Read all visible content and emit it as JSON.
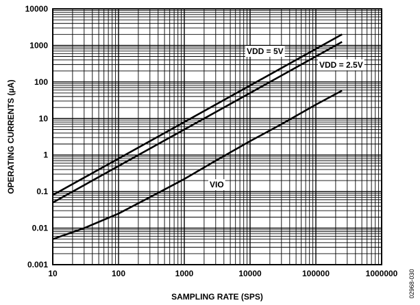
{
  "chart_data": {
    "type": "line",
    "title": "",
    "xlabel": "SAMPLING RATE (SPS)",
    "ylabel": "OPERATING CURRENTS (µA)",
    "xscale": "log",
    "yscale": "log",
    "xlim": [
      10,
      1000000
    ],
    "ylim": [
      0.001,
      10000
    ],
    "grid": true,
    "x_ticks": [
      "10",
      "100",
      "1000",
      "10000",
      "100000",
      "1000000"
    ],
    "y_ticks": [
      "0.001",
      "0.01",
      "0.1",
      "1",
      "10",
      "100",
      "1000",
      "10000"
    ],
    "series": [
      {
        "name": "VDD = 5V",
        "x": [
          10,
          250000
        ],
        "y": [
          0.08,
          2000
        ]
      },
      {
        "name": "VDD = 2.5V",
        "x": [
          10,
          250000
        ],
        "y": [
          0.05,
          1250
        ]
      },
      {
        "name": "VIO",
        "x": [
          10,
          30,
          100,
          300,
          1000,
          3000,
          10000,
          30000,
          100000,
          250000
        ],
        "y": [
          0.005,
          0.01,
          0.025,
          0.07,
          0.22,
          0.7,
          2.4,
          7,
          24,
          58
        ]
      }
    ],
    "figure_id": "02968-030"
  }
}
